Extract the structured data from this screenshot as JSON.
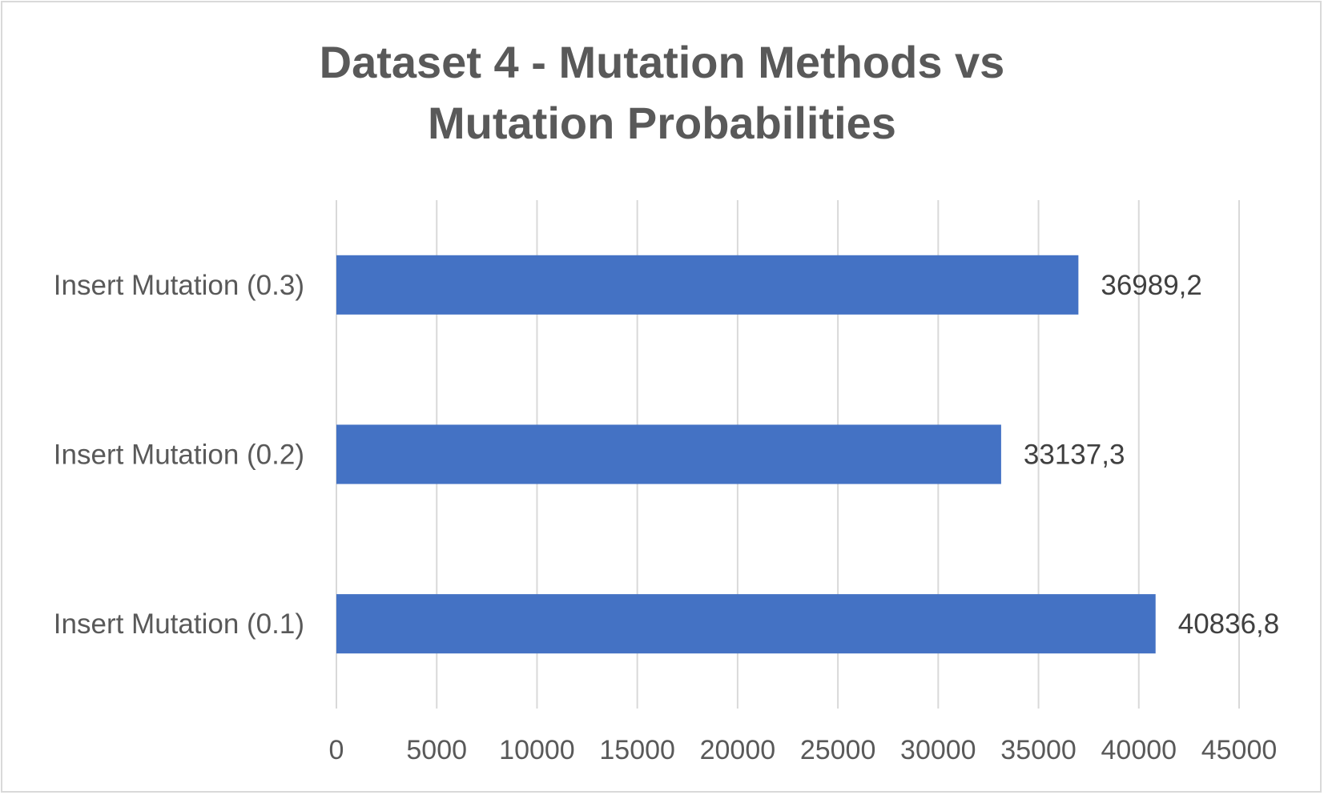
{
  "chart_data": {
    "type": "bar",
    "orientation": "horizontal",
    "title": "Dataset 4 - Mutation Methods vs Mutation Probabilities",
    "categories": [
      "Insert Mutation (0.3)",
      "Insert Mutation (0.2)",
      "Insert Mutation (0.1)"
    ],
    "values": [
      36989.2,
      33137.3,
      40836.8
    ],
    "data_labels": [
      "36989,2",
      "33137,3",
      "40836,8"
    ],
    "xlim": [
      0,
      45000
    ],
    "xticks": [
      0,
      5000,
      10000,
      15000,
      20000,
      25000,
      30000,
      35000,
      40000,
      45000
    ],
    "xtick_labels": [
      "0",
      "5000",
      "10000",
      "15000",
      "20000",
      "25000",
      "30000",
      "35000",
      "40000",
      "45000"
    ],
    "xlabel": "",
    "ylabel": "",
    "grid": "vertical",
    "legend": "none",
    "bar_color": "#4472c4",
    "grid_color": "#d9d9d9"
  }
}
